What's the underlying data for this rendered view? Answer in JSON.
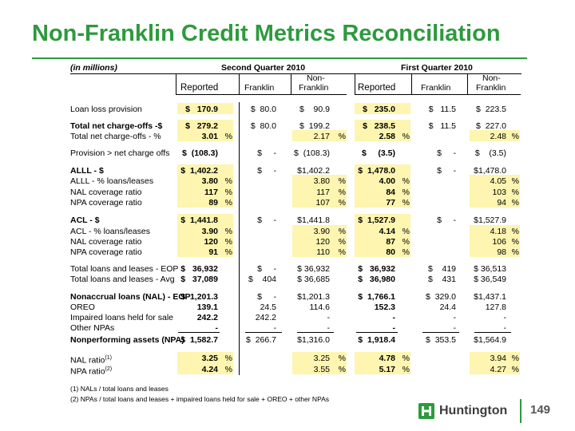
{
  "title": "Non-Franklin Credit Metrics Reconciliation",
  "units": "(in millions)",
  "periods": [
    "Second Quarter 2010",
    "First Quarter 2010"
  ],
  "col_headers": {
    "reported": "Reported",
    "franklin": "Franklin",
    "non": "Non-",
    "franklin2": "Franklin"
  },
  "rows": [
    {
      "label": "Loan loss provision",
      "bold": false,
      "v": [
        "$   170.9",
        "",
        "$  80.0",
        "$    90.9",
        "",
        "$   235.0",
        "",
        "$   11.5",
        "$  223.5",
        ""
      ]
    },
    {
      "label": "Total net charge-offs -$",
      "bold": true,
      "v": [
        "$   279.2",
        "",
        "$  80.0",
        "$  199.2",
        "",
        "$   238.5",
        "",
        "$   11.5",
        "$  227.0",
        ""
      ]
    },
    {
      "label": "Total net charge-offs - %",
      "bold": false,
      "v": [
        "3.01",
        "%",
        "",
        "2.17",
        "%",
        "2.58",
        "%",
        "",
        "2.48",
        "%"
      ]
    },
    {
      "label": "Provision > net charge offs",
      "bold": false,
      "v": [
        "$  (108.3)",
        "",
        "$     -",
        "$  (108.3)",
        "",
        "$     (3.5)",
        "",
        "$     -",
        "$    (3.5)",
        ""
      ]
    },
    {
      "label": "ALLL - $",
      "bold": true,
      "v": [
        "$  1,402.2",
        "",
        "$     -",
        "$1,402.2",
        "",
        "$  1,478.0",
        "",
        "$     -",
        "$1,478.0",
        ""
      ]
    },
    {
      "label": "ALLL - % loans/leases",
      "bold": false,
      "v": [
        "3.80",
        "%",
        "",
        "3.80",
        "%",
        "4.00",
        "%",
        "",
        "4.05",
        "%"
      ]
    },
    {
      "label": "NAL coverage ratio",
      "bold": false,
      "v": [
        "117",
        "%",
        "",
        "117",
        "%",
        "84",
        "%",
        "",
        "103",
        "%"
      ]
    },
    {
      "label": "NPA coverage ratio",
      "bold": false,
      "v": [
        "89",
        "%",
        "",
        "107",
        "%",
        "77",
        "%",
        "",
        "94",
        "%"
      ]
    },
    {
      "label": "ACL - $",
      "bold": true,
      "v": [
        "$  1,441.8",
        "",
        "$     -",
        "$1,441.8",
        "",
        "$  1,527.9",
        "",
        "$     -",
        "$1,527.9",
        ""
      ]
    },
    {
      "label": "ACL - % loans/leases",
      "bold": false,
      "v": [
        "3.90",
        "%",
        "",
        "3.90",
        "%",
        "4.14",
        "%",
        "",
        "4.18",
        "%"
      ]
    },
    {
      "label": "NAL coverage ratio",
      "bold": false,
      "v": [
        "120",
        "%",
        "",
        "120",
        "%",
        "87",
        "%",
        "",
        "106",
        "%"
      ]
    },
    {
      "label": "NPA coverage ratio",
      "bold": false,
      "v": [
        "91",
        "%",
        "",
        "110",
        "%",
        "80",
        "%",
        "",
        "98",
        "%"
      ]
    },
    {
      "label": "Total loans and leases - EOP",
      "bold": false,
      "v": [
        "$   36,932",
        "",
        "$     -",
        "$ 36,932",
        "",
        "$   36,932",
        "",
        "$    419",
        "$ 36,513",
        ""
      ]
    },
    {
      "label": "Total loans and leases - Avg",
      "bold": false,
      "v": [
        "$   37,089",
        "",
        "$    404",
        "$ 36,685",
        "",
        "$   36,980",
        "",
        "$    431",
        "$ 36,549",
        ""
      ]
    },
    {
      "label": "Nonaccrual loans (NAL) - EOP",
      "bold": true,
      "v": [
        "$  1,201.3",
        "",
        "$     -",
        "$1,201.3",
        "",
        "$  1,766.1",
        "",
        "$  329.0",
        "$1,437.1",
        ""
      ]
    },
    {
      "label": "OREO",
      "bold": false,
      "v": [
        "139.1",
        "",
        "24.5",
        "114.6",
        "",
        "152.3",
        "",
        "24.4",
        "127.8",
        ""
      ]
    },
    {
      "label": "Impaired loans held for sale",
      "bold": false,
      "v": [
        "242.2",
        "",
        "242.2",
        "-",
        "",
        "-",
        "",
        "-",
        "-",
        ""
      ]
    },
    {
      "label": "Other NPAs",
      "bold": false,
      "v": [
        "-",
        "",
        "-",
        "-",
        "",
        "-",
        "",
        "-",
        "-",
        ""
      ]
    },
    {
      "label": "Nonperforming assets (NPA)",
      "bold": true,
      "v": [
        "$  1,582.7",
        "",
        "$  266.7",
        "$1,316.0",
        "",
        "$  1,918.4",
        "",
        "$  353.5",
        "$1,564.9",
        ""
      ]
    },
    {
      "label": "NAL ratio",
      "sup": "(1)",
      "bold": false,
      "v": [
        "3.25",
        "%",
        "",
        "3.25",
        "%",
        "4.78",
        "%",
        "",
        "3.94",
        "%"
      ]
    },
    {
      "label": "NPA ratio",
      "sup": "(2)",
      "bold": false,
      "v": [
        "4.24",
        "%",
        "",
        "3.55",
        "%",
        "5.17",
        "%",
        "",
        "4.27",
        "%"
      ]
    }
  ],
  "footnotes": [
    "(1) NALs / total loans and leases",
    "(2) NPAs / total loans and leases + impaired loans held for sale + OREO + other NPAs"
  ],
  "logo_text": "Huntington",
  "page_number": "149",
  "colors": {
    "title": "#2e9a3e",
    "highlight": "#fdf5b0"
  }
}
